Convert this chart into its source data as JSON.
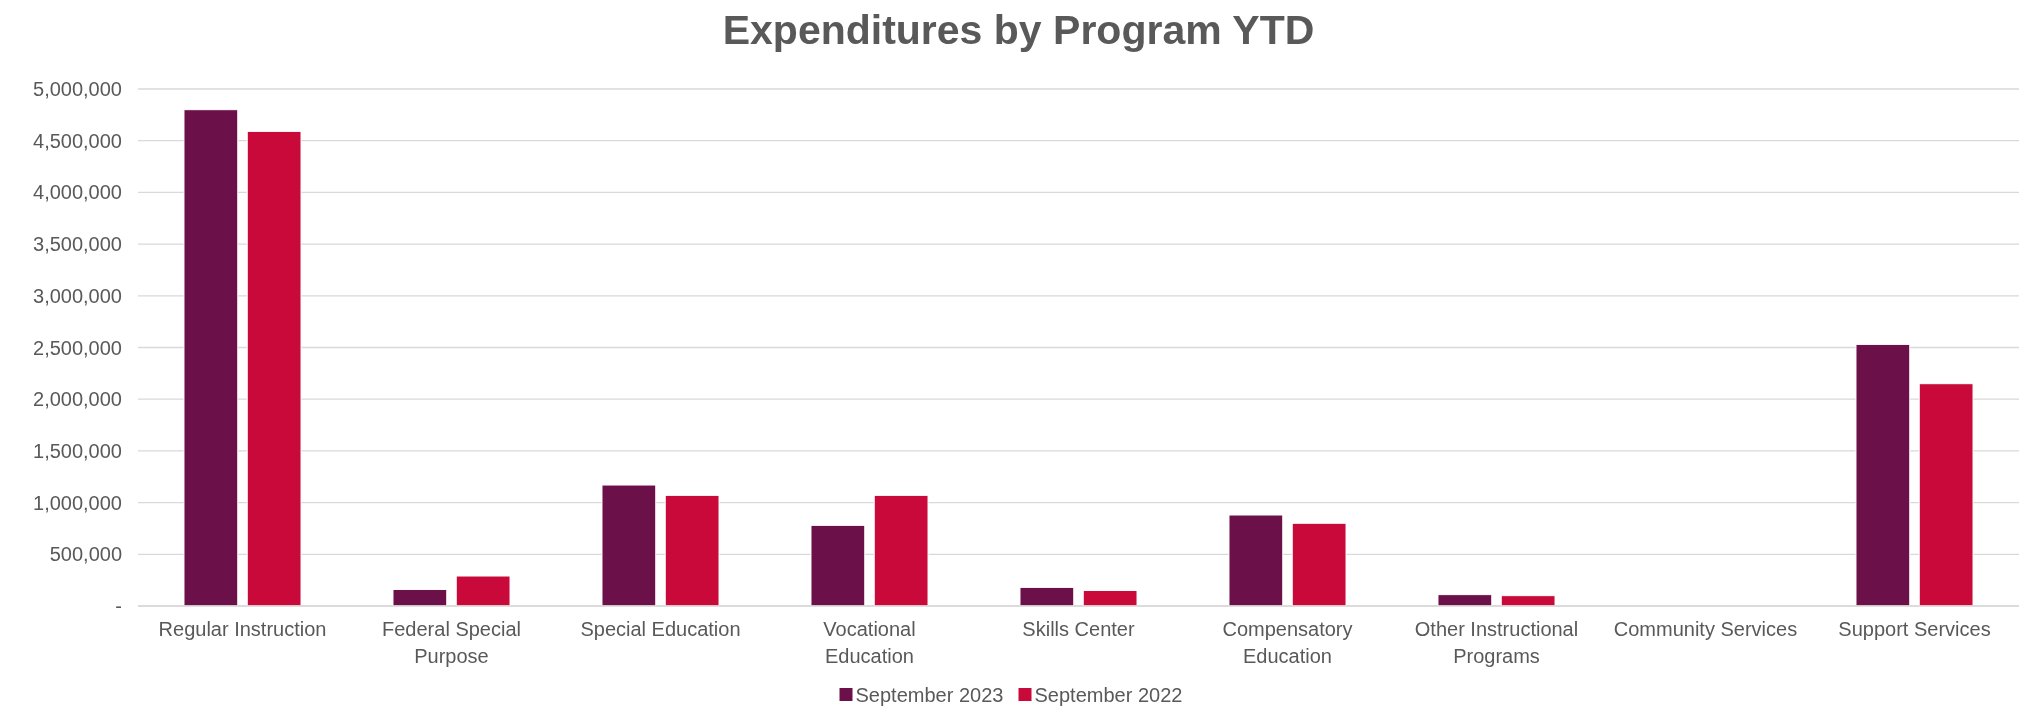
{
  "chart_data": {
    "type": "bar",
    "title": "Expenditures by Program YTD",
    "categories": [
      "Regular Instruction",
      "Federal Special Purpose",
      "Special Education",
      "Vocational Education",
      "Skills Center",
      "Compensatory Education",
      "Other Instructional Programs",
      "Community Services",
      "Support Services"
    ],
    "series": [
      {
        "name": "September 2023",
        "color": "#6b1048",
        "values": [
          4800000,
          160000,
          1170000,
          780000,
          180000,
          880000,
          110000,
          0,
          2530000
        ]
      },
      {
        "name": "September 2022",
        "color": "#c8093a",
        "values": [
          4590000,
          290000,
          1070000,
          1070000,
          150000,
          800000,
          100000,
          0,
          2150000
        ]
      }
    ],
    "ylim": [
      0,
      5000000
    ],
    "yticks": [
      {
        "value": 0,
        "label": "-"
      },
      {
        "value": 500000,
        "label": "500,000"
      },
      {
        "value": 1000000,
        "label": "1,000,000"
      },
      {
        "value": 1500000,
        "label": "1,500,000"
      },
      {
        "value": 2000000,
        "label": "2,000,000"
      },
      {
        "value": 2500000,
        "label": "2,500,000"
      },
      {
        "value": 3000000,
        "label": "3,000,000"
      },
      {
        "value": 3500000,
        "label": "3,500,000"
      },
      {
        "value": 4000000,
        "label": "4,000,000"
      },
      {
        "value": 4500000,
        "label": "4,500,000"
      },
      {
        "value": 5000000,
        "label": "5,000,000"
      }
    ],
    "grid": "y",
    "legend": "bottom"
  }
}
